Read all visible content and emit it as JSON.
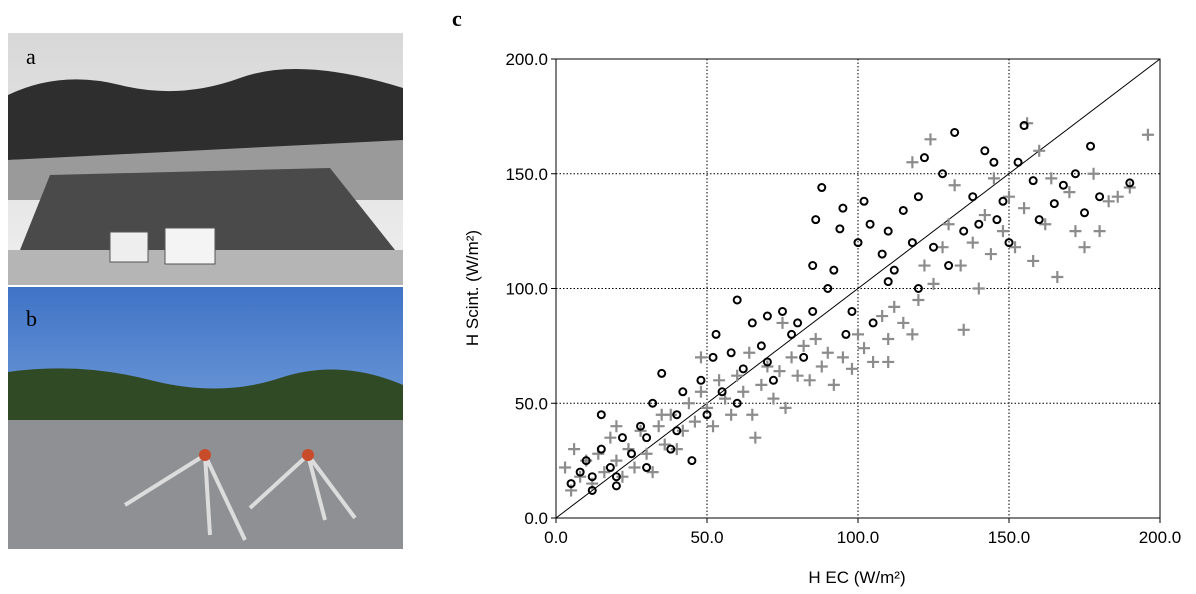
{
  "panel_labels": [
    "a",
    "b",
    "c"
  ],
  "chart_data": {
    "type": "scatter",
    "x_label": "H EC (W/m²)",
    "y_label": "H Scint. (W/m²)",
    "xlim": [
      0,
      200
    ],
    "ylim": [
      0,
      200
    ],
    "xticks": [
      {
        "value": 0,
        "label": "0.0"
      },
      {
        "value": 50,
        "label": "50.0"
      },
      {
        "value": 100,
        "label": "100.0"
      },
      {
        "value": 150,
        "label": "150.0"
      },
      {
        "value": 200,
        "label": "200.0"
      }
    ],
    "yticks": [
      {
        "value": 0,
        "label": "0.0"
      },
      {
        "value": 50,
        "label": "50.0"
      },
      {
        "value": 100,
        "label": "100.0"
      },
      {
        "value": 150,
        "label": "150.0"
      },
      {
        "value": 200,
        "label": "200.0"
      }
    ],
    "grid": true,
    "identity_line": true,
    "series": [
      {
        "color": "#000000",
        "marker": "circle",
        "x": [
          5,
          8,
          10,
          12,
          15,
          15,
          18,
          20,
          22,
          25,
          28,
          30,
          32,
          35,
          38,
          40,
          42,
          45,
          48,
          50,
          52,
          53,
          55,
          58,
          60,
          62,
          65,
          68,
          70,
          72,
          75,
          78,
          80,
          82,
          85,
          86,
          88,
          90,
          92,
          94,
          95,
          96,
          98,
          100,
          102,
          104,
          105,
          108,
          110,
          112,
          115,
          118,
          120,
          122,
          125,
          128,
          130,
          132,
          135,
          138,
          140,
          142,
          145,
          148,
          150,
          153,
          155,
          158,
          160,
          165,
          168,
          172,
          175,
          177,
          180,
          190,
          12,
          20,
          30,
          40,
          60,
          70,
          85,
          110,
          120,
          146
        ],
        "values": [
          15,
          20,
          25,
          18,
          30,
          45,
          22,
          14,
          35,
          28,
          40,
          22,
          50,
          63,
          30,
          45,
          55,
          25,
          60,
          45,
          70,
          80,
          55,
          72,
          95,
          65,
          85,
          75,
          88,
          60,
          90,
          80,
          85,
          70,
          110,
          130,
          144,
          100,
          108,
          126,
          135,
          80,
          90,
          120,
          138,
          128,
          85,
          115,
          125,
          108,
          134,
          120,
          140,
          157,
          118,
          150,
          110,
          168,
          125,
          140,
          128,
          160,
          155,
          138,
          120,
          155,
          171,
          147,
          130,
          137,
          145,
          150,
          133,
          162,
          140,
          146,
          12,
          18,
          35,
          38,
          50,
          68,
          90,
          103,
          100,
          130
        ]
      },
      {
        "color": "#8c8c8c",
        "marker": "plus",
        "x": [
          3,
          5,
          6,
          8,
          10,
          12,
          14,
          16,
          18,
          20,
          22,
          24,
          26,
          28,
          30,
          32,
          34,
          36,
          38,
          40,
          42,
          44,
          46,
          48,
          50,
          52,
          54,
          56,
          58,
          60,
          62,
          64,
          65,
          66,
          68,
          70,
          72,
          74,
          76,
          78,
          80,
          82,
          84,
          86,
          88,
          90,
          92,
          95,
          98,
          100,
          102,
          105,
          108,
          110,
          112,
          115,
          118,
          120,
          122,
          125,
          128,
          130,
          132,
          134,
          135,
          138,
          140,
          142,
          144,
          145,
          148,
          150,
          152,
          155,
          156,
          158,
          160,
          162,
          164,
          166,
          170,
          172,
          175,
          178,
          180,
          183,
          186,
          190,
          196,
          118,
          124,
          75,
          110,
          48,
          35,
          20
        ],
        "values": [
          22,
          12,
          30,
          18,
          25,
          15,
          28,
          20,
          35,
          25,
          18,
          30,
          22,
          38,
          28,
          20,
          40,
          32,
          45,
          30,
          38,
          50,
          42,
          55,
          48,
          40,
          60,
          52,
          45,
          62,
          55,
          72,
          45,
          35,
          58,
          66,
          52,
          64,
          48,
          70,
          62,
          75,
          60,
          78,
          66,
          72,
          58,
          70,
          65,
          80,
          74,
          68,
          88,
          78,
          92,
          85,
          80,
          95,
          110,
          102,
          118,
          128,
          145,
          110,
          82,
          120,
          100,
          132,
          115,
          148,
          125,
          140,
          118,
          135,
          172,
          112,
          160,
          128,
          148,
          105,
          142,
          125,
          118,
          150,
          125,
          138,
          140,
          144,
          167,
          155,
          165,
          85,
          68,
          70,
          45,
          40
        ]
      }
    ]
  }
}
